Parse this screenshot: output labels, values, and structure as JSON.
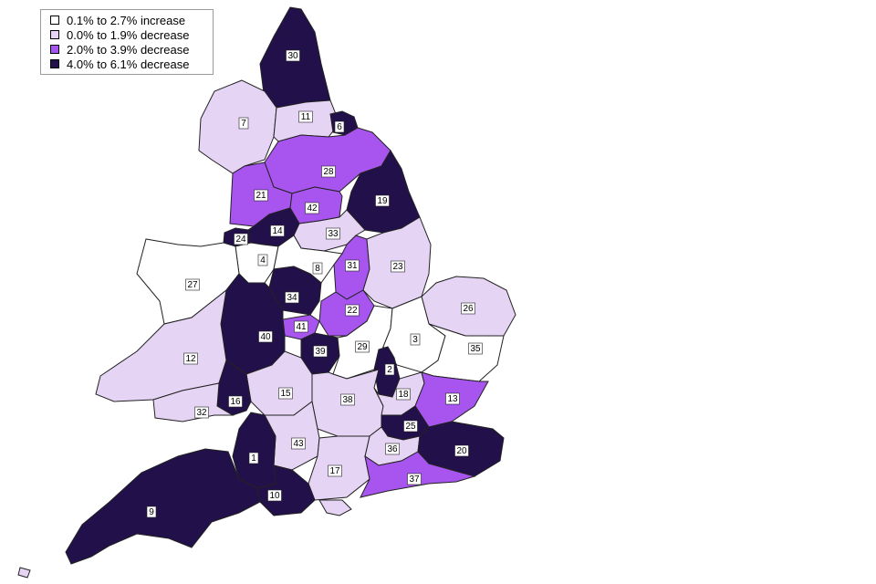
{
  "legend": {
    "items": [
      {
        "label": "0.1% to 2.7% increase",
        "color": "#ffffff"
      },
      {
        "label": "0.0% to 1.9% decrease",
        "color": "#e6d4f5"
      },
      {
        "label": "2.0% to 3.9% decrease",
        "color": "#a855f0"
      },
      {
        "label": "4.0% to 6.1% decrease",
        "color": "#22104a"
      }
    ]
  },
  "areas": [
    {
      "id": "30",
      "cls": 3
    },
    {
      "id": "7",
      "cls": 1
    },
    {
      "id": "11",
      "cls": 1
    },
    {
      "id": "6",
      "cls": 3
    },
    {
      "id": "28",
      "cls": 2
    },
    {
      "id": "21",
      "cls": 2
    },
    {
      "id": "42",
      "cls": 2
    },
    {
      "id": "19",
      "cls": 3
    },
    {
      "id": "24",
      "cls": 3
    },
    {
      "id": "14",
      "cls": 3
    },
    {
      "id": "33",
      "cls": 1
    },
    {
      "id": "4",
      "cls": 0
    },
    {
      "id": "8",
      "cls": 0
    },
    {
      "id": "27",
      "cls": 0
    },
    {
      "id": "31",
      "cls": 2
    },
    {
      "id": "23",
      "cls": 1
    },
    {
      "id": "34",
      "cls": 3
    },
    {
      "id": "22",
      "cls": 2
    },
    {
      "id": "26",
      "cls": 1
    },
    {
      "id": "41",
      "cls": 2
    },
    {
      "id": "40",
      "cls": 3
    },
    {
      "id": "39",
      "cls": 3
    },
    {
      "id": "29",
      "cls": 0
    },
    {
      "id": "3",
      "cls": 0
    },
    {
      "id": "35",
      "cls": 0
    },
    {
      "id": "12",
      "cls": 1
    },
    {
      "id": "2",
      "cls": 3
    },
    {
      "id": "15",
      "cls": 1
    },
    {
      "id": "38",
      "cls": 1
    },
    {
      "id": "18",
      "cls": 1
    },
    {
      "id": "13",
      "cls": 2
    },
    {
      "id": "16",
      "cls": 3
    },
    {
      "id": "32",
      "cls": 1
    },
    {
      "id": "25",
      "cls": 3
    },
    {
      "id": "43",
      "cls": 1
    },
    {
      "id": "36",
      "cls": 1
    },
    {
      "id": "20",
      "cls": 3
    },
    {
      "id": "1",
      "cls": 3
    },
    {
      "id": "17",
      "cls": 1
    },
    {
      "id": "37",
      "cls": 2
    },
    {
      "id": "10",
      "cls": 3
    },
    {
      "id": "9",
      "cls": 3
    }
  ]
}
